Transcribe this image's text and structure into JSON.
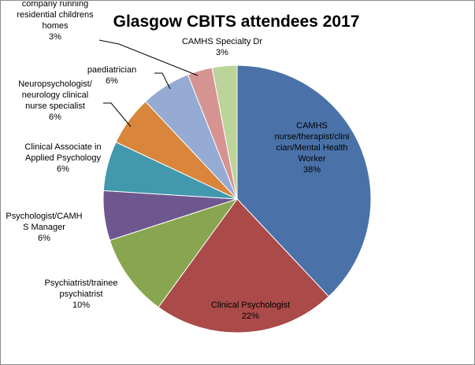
{
  "chart_data": {
    "type": "pie",
    "title": "Glasgow CBITS attendees 2017",
    "start_angle_deg": 0,
    "direction": "clockwise",
    "slices": [
      {
        "name": "CAMHS nurse/therapist/clinician/Mental Health Worker",
        "label_lines": [
          "CAMHS",
          "nurse/therapist/clini",
          "cian/Mental Health",
          "Worker",
          "38%"
        ],
        "value": 38,
        "value_label": "38%",
        "color": "#4a72a8"
      },
      {
        "name": "Clinical Psychologist",
        "label_lines": [
          "Clinical Psychologist",
          "22%"
        ],
        "value": 22,
        "value_label": "22%",
        "color": "#aa4a49"
      },
      {
        "name": "Psychiatrist/trainee psychiatrist",
        "label_lines": [
          "Psychiatrist/trainee",
          "psychiatrist",
          "10%"
        ],
        "value": 10,
        "value_label": "10%",
        "color": "#88a64f"
      },
      {
        "name": "Psychologist/CAMHS Manager",
        "label_lines": [
          "Psychologist/CAMH",
          "S Manager",
          "6%"
        ],
        "value": 6,
        "value_label": "6%",
        "color": "#6e578e"
      },
      {
        "name": "Clinical Associate in Applied Psychology",
        "label_lines": [
          "Clinical Associate in",
          "Applied Psychology",
          "6%"
        ],
        "value": 6,
        "value_label": "6%",
        "color": "#4298ad"
      },
      {
        "name": "Neuropsychologist/neurology clinical nurse specialist",
        "label_lines": [
          "Neuropsychologist/",
          "neurology clinical",
          "nurse specialist",
          "6%"
        ],
        "value": 6,
        "value_label": "6%",
        "color": "#d9853b"
      },
      {
        "name": "paediatrician",
        "label_lines": [
          "paediatrician",
          "6%"
        ],
        "value": 6,
        "value_label": "6%",
        "color": "#95abd3"
      },
      {
        "name": "Psychologist from company running residential childrens homes",
        "label_lines": [
          "Psychologist from",
          "company running",
          "residential childrens",
          "homes",
          "3%"
        ],
        "value": 3,
        "value_label": "3%",
        "color": "#d59392"
      },
      {
        "name": "CAMHS Specialty Dr",
        "label_lines": [
          "CAMHS  Specialty Dr",
          "3%"
        ],
        "value": 3,
        "value_label": "3%",
        "color": "#bcd39a"
      }
    ]
  }
}
